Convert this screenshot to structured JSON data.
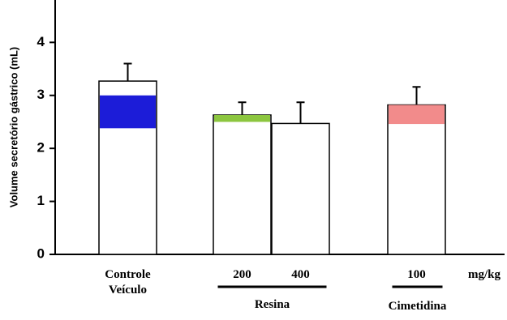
{
  "chart_data": {
    "type": "bar",
    "y_label": "Volume secretório gástrico (mL)",
    "categories": [
      "Controle Veículo",
      "200",
      "400",
      "100"
    ],
    "values": [
      3.27,
      2.63,
      2.47,
      2.82
    ],
    "errors": [
      0.33,
      0.24,
      0.4,
      0.34
    ],
    "color": "#ffffff",
    "highlights": [
      [
        2.38,
        3.0
      ],
      [
        2.5,
        2.63
      ],
      null,
      [
        2.46,
        2.82
      ]
    ],
    "highlight_colors": [
      "#1c1cd8",
      "#8cc63f",
      null,
      "#f28b8b"
    ],
    "groups": [
      {
        "label": "Resina",
        "categories": [
          "200",
          "400"
        ]
      },
      {
        "label": "Cimetidina",
        "categories": [
          "100"
        ]
      }
    ],
    "x_unit": "mg/kg",
    "ylim": [
      0,
      4.8
    ],
    "yticks": [
      0,
      1,
      2,
      3,
      4
    ],
    "grid": false
  }
}
